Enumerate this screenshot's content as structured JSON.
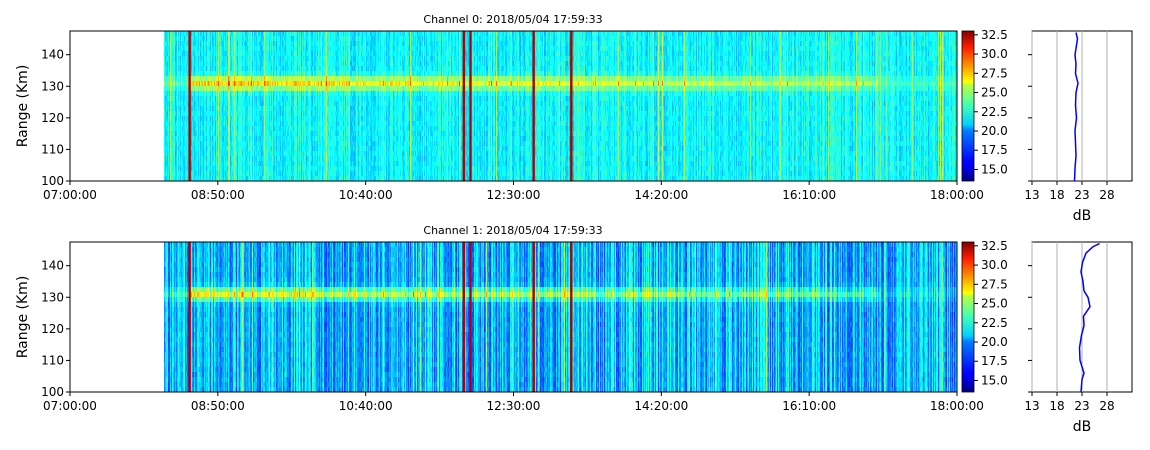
{
  "colorbar": {
    "ticks": [
      "15.0",
      "17.5",
      "20.0",
      "22.5",
      "25.0",
      "27.5",
      "30.0",
      "32.5"
    ],
    "range": [
      13.5,
      33.0
    ],
    "colormap": "jet"
  },
  "chart_data": [
    {
      "type": "heatmap",
      "title": "Channel 0: 2018/05/04 17:59:33",
      "ylabel": "Range (Km)",
      "xlabel": "",
      "x_ticks": [
        "07:00:00",
        "08:50:00",
        "10:40:00",
        "12:30:00",
        "14:20:00",
        "16:10:00",
        "18:00:00"
      ],
      "xlim": [
        "07:00:00",
        "18:00:00"
      ],
      "y_ticks": [
        100,
        110,
        120,
        130,
        140
      ],
      "ylim": [
        100,
        147.5
      ],
      "data_start": "08:10:00",
      "band_center_km": 131,
      "colorbar_unit": "dB",
      "colorbar_range": [
        13.5,
        33.0
      ],
      "strong_columns": [
        "08:29:00",
        "11:53:00",
        "11:58:00",
        "12:45:00",
        "13:13:00"
      ]
    },
    {
      "type": "heatmap",
      "title": "Channel 1: 2018/05/04 17:59:33",
      "ylabel": "Range (Km)",
      "xlabel": "",
      "x_ticks": [
        "07:00:00",
        "08:50:00",
        "10:40:00",
        "12:30:00",
        "14:20:00",
        "16:10:00",
        "18:00:00"
      ],
      "xlim": [
        "07:00:00",
        "18:00:00"
      ],
      "y_ticks": [
        100,
        110,
        120,
        130,
        140
      ],
      "ylim": [
        100,
        147.5
      ],
      "data_start": "08:10:00",
      "band_center_km": 131,
      "colorbar_unit": "dB",
      "colorbar_range": [
        13.5,
        33.0
      ],
      "strong_columns": [
        "08:29:00",
        "11:53:00",
        "11:58:00",
        "12:45:00",
        "13:13:00"
      ]
    },
    {
      "type": "line",
      "title": "",
      "xlabel": "dB",
      "ylabel": "",
      "x_ticks": [
        "13",
        "18",
        "23",
        "28"
      ],
      "xlim": [
        13,
        33
      ],
      "ylim": [
        100,
        147.5
      ],
      "series": [
        {
          "color": "#0000ff",
          "y": [
            100,
            104,
            108,
            112,
            116,
            120,
            124,
            128,
            131,
            134,
            137,
            140,
            143,
            145,
            147
          ],
          "x": [
            21.5,
            21.6,
            21.8,
            21.7,
            21.6,
            21.9,
            21.7,
            21.8,
            22.2,
            21.7,
            21.8,
            21.6,
            21.9,
            22.1,
            21.8
          ]
        }
      ]
    },
    {
      "type": "line",
      "title": "",
      "xlabel": "dB",
      "ylabel": "",
      "x_ticks": [
        "13",
        "18",
        "23",
        "28"
      ],
      "xlim": [
        13,
        33
      ],
      "ylim": [
        100,
        147.5
      ],
      "series": [
        {
          "color": "#0000ff",
          "y": [
            100,
            104,
            106,
            110,
            114,
            118,
            121,
            124,
            127,
            130,
            132,
            135,
            138,
            141,
            144,
            146,
            147
          ],
          "x": [
            22.8,
            23.0,
            23.4,
            22.6,
            22.5,
            22.9,
            23.4,
            23.3,
            24.6,
            24.2,
            23.4,
            23.2,
            22.8,
            23.1,
            23.8,
            25.2,
            26.5
          ]
        }
      ]
    }
  ]
}
